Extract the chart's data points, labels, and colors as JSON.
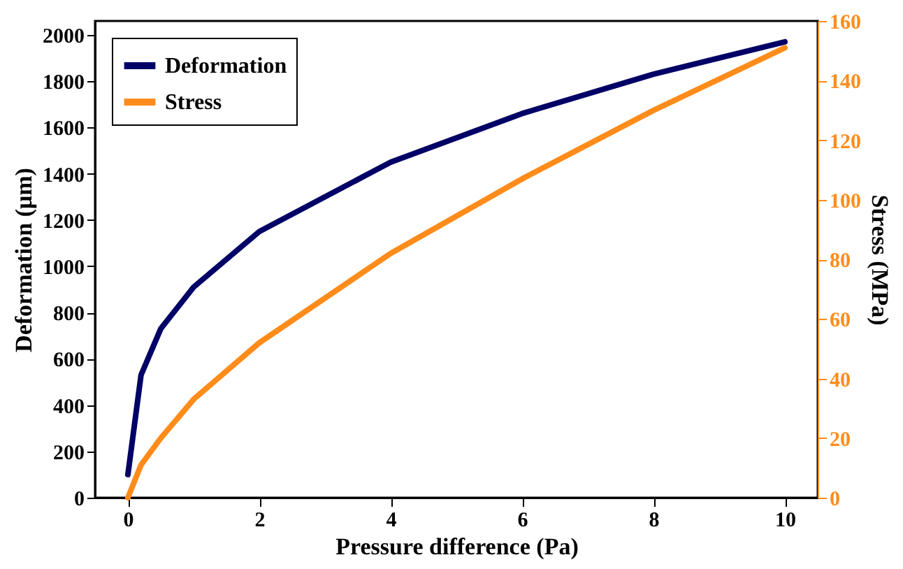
{
  "chart_data": {
    "type": "line",
    "xlabel": "Pressure difference (Pa)",
    "ylabel": "Deformation (μm)",
    "y2label": "Stress (MPa)",
    "x": [
      0,
      0.2,
      0.5,
      1,
      2,
      4,
      6,
      8,
      10
    ],
    "series": [
      {
        "name": "Deformation",
        "color": "#000066",
        "values": [
          100,
          530,
          730,
          910,
          1150,
          1450,
          1660,
          1830,
          1970
        ]
      },
      {
        "name": "Stress",
        "color": "#ff8c1a",
        "axis": "y2",
        "values": [
          0,
          11,
          20,
          33,
          52,
          82,
          107,
          130,
          151
        ]
      }
    ],
    "xlim": [
      -0.5,
      10.5
    ],
    "xticks": [
      0,
      2,
      4,
      6,
      8,
      10
    ],
    "ylim": [
      0,
      2060
    ],
    "yticks": [
      0,
      200,
      400,
      600,
      800,
      1000,
      1200,
      1400,
      1600,
      1800,
      2000
    ],
    "y2lim": [
      0,
      160
    ],
    "y2ticks": [
      0,
      20,
      40,
      60,
      80,
      100,
      120,
      140,
      160
    ],
    "grid": false,
    "legend": "top left",
    "marker": "none",
    "line_style": "solid"
  }
}
